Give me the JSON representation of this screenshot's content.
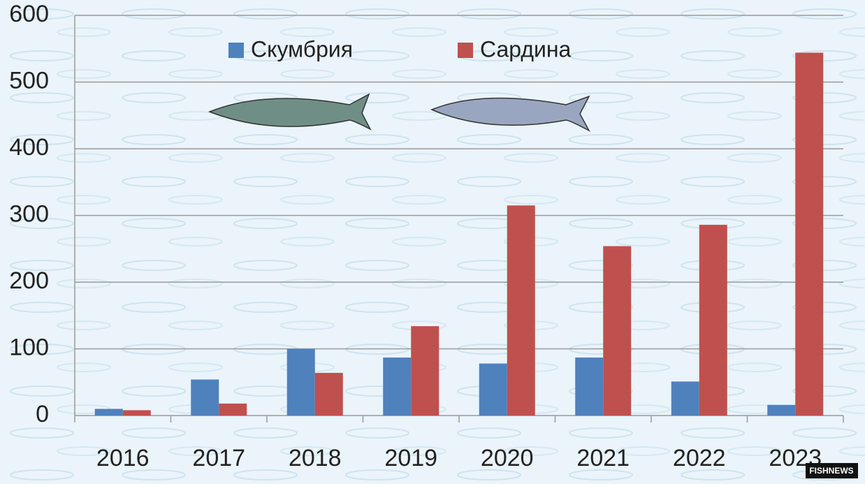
{
  "chart_data": {
    "type": "bar",
    "categories": [
      "2016",
      "2017",
      "2018",
      "2019",
      "2020",
      "2021",
      "2022",
      "2023"
    ],
    "series": [
      {
        "name": "Скумбрия",
        "color": "#4f81bd",
        "values": [
          10,
          54,
          100,
          87,
          78,
          87,
          51,
          16
        ]
      },
      {
        "name": "Сардина",
        "color": "#c0504d",
        "values": [
          8,
          18,
          64,
          134,
          315,
          254,
          286,
          544
        ]
      }
    ],
    "ylim": [
      0,
      600
    ],
    "yticks": [
      0,
      100,
      200,
      300,
      400,
      500,
      600
    ],
    "grid": true,
    "legend": "top"
  },
  "logo": "FISHNEWS"
}
